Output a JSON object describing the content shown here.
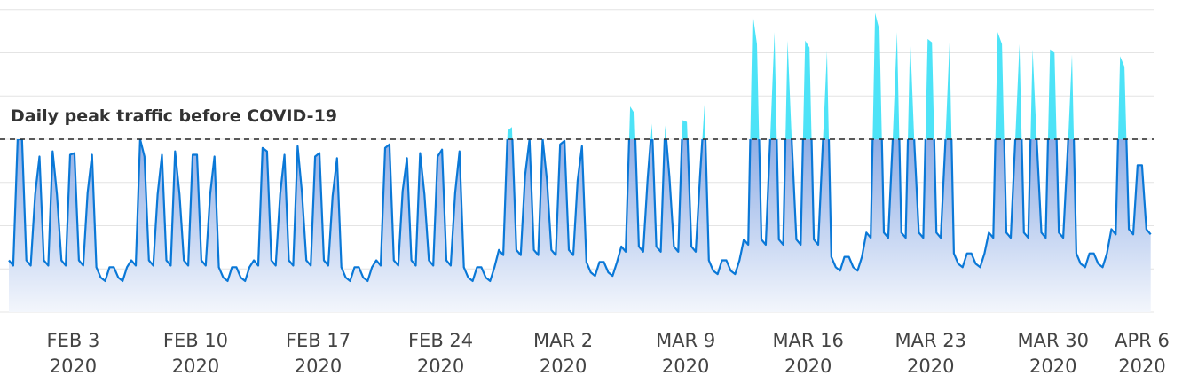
{
  "chart_data": {
    "type": "area",
    "title": "",
    "xlabel": "",
    "ylabel": "",
    "grid": true,
    "legend": "none",
    "colors": {
      "line": "#0a78d7",
      "area_top": "#8faee6",
      "area_bottom": "#f3f6fc",
      "above_baseline": "#4de3f7",
      "grid": "#e4e4e4",
      "baseline": "#222222"
    },
    "x_start": "2020-02-01",
    "x_labels": [
      {
        "date": "FEB 3",
        "year": "2020",
        "index": 8
      },
      {
        "date": "FEB 10",
        "year": "2020",
        "index": 36
      },
      {
        "date": "FEB 17",
        "year": "2020",
        "index": 64
      },
      {
        "date": "FEB 24",
        "year": "2020",
        "index": 92
      },
      {
        "date": "MAR 2",
        "year": "2020",
        "index": 120
      },
      {
        "date": "MAR 9",
        "year": "2020",
        "index": 148
      },
      {
        "date": "MAR 16",
        "year": "2020",
        "index": 176
      },
      {
        "date": "MAR 23",
        "year": "2020",
        "index": 204
      },
      {
        "date": "MAR 30",
        "year": "2020",
        "index": 232
      },
      {
        "date": "APR 6",
        "year": "2020",
        "index": 260
      }
    ],
    "ylim": [
      0,
      1.75
    ],
    "yticks": [
      0.25,
      0.5,
      0.75,
      1.0,
      1.25,
      1.5,
      1.75
    ],
    "baseline": {
      "value": 1.0,
      "label": "Daily peak traffic before COVID-19"
    },
    "day_profiles": {
      "weekday": [
        0.3,
        0.27,
        0.67,
        0.81,
        0.79,
        0.66
      ],
      "weekend": [
        0.26,
        0.2,
        0.18,
        0.26
      ]
    },
    "weeks": [
      {
        "peaks": [
          1.0,
          1.0,
          0.68,
          0.9,
          0.93,
          0.68,
          0.91,
          0.92,
          0.69,
          0.91,
          0.93,
          0.68,
          0.88,
          0.89
        ],
        "weekend_offset": 0.0
      },
      {
        "peaks": [
          1.0,
          0.9,
          0.68,
          0.91,
          0.93,
          0.68,
          0.91,
          0.91,
          0.68,
          0.9,
          0.93,
          0.68,
          0.87,
          0.88
        ],
        "weekend_offset": 0.0
      },
      {
        "peaks": [
          0.95,
          0.93,
          0.68,
          0.91,
          0.96,
          0.69,
          0.9,
          0.92,
          0.67,
          0.89,
          0.91,
          0.65,
          0.85,
          0.86
        ],
        "weekend_offset": 0.0
      },
      {
        "peaks": [
          0.95,
          0.97,
          0.7,
          0.89,
          0.92,
          0.68,
          0.9,
          0.94,
          0.69,
          0.93,
          0.93,
          0.71,
          0.9,
          0.91
        ],
        "weekend_offset": 0.0
      },
      {
        "peaks": [
          1.05,
          1.07,
          0.79,
          1.0,
          1.0,
          0.76,
          0.97,
          0.99,
          0.76,
          0.96,
          0.97,
          0.74,
          0.95,
          0.96
        ],
        "weekend_offset": 0.03
      },
      {
        "peaks": [
          1.19,
          1.15,
          0.77,
          1.09,
          1.08,
          0.78,
          1.11,
          1.1,
          0.79,
          1.2,
          1.17,
          0.88,
          1.29,
          1.26
        ],
        "weekend_offset": 0.04
      },
      {
        "peaks": [
          1.73,
          1.55,
          0.99,
          1.62,
          1.57,
          0.96,
          1.57,
          1.53,
          0.95,
          1.51,
          1.49,
          0.9,
          1.5,
          1.48
        ],
        "weekend_offset": 0.06
      },
      {
        "peaks": [
          1.73,
          1.63,
          0.99,
          1.62,
          1.59,
          0.96,
          1.58,
          1.56,
          0.95,
          1.56,
          1.53,
          0.91,
          1.52,
          1.5
        ],
        "weekend_offset": 0.08
      },
      {
        "peaks": [
          1.62,
          1.55,
          0.98,
          1.55,
          1.52,
          0.97,
          1.52,
          1.5,
          0.93,
          1.49,
          1.47,
          0.9,
          1.43,
          1.42
        ],
        "weekend_offset": 0.08
      },
      {
        "peaks": [
          1.48,
          1.42,
          0.85
        ],
        "weekend_offset": 0.09
      }
    ]
  }
}
